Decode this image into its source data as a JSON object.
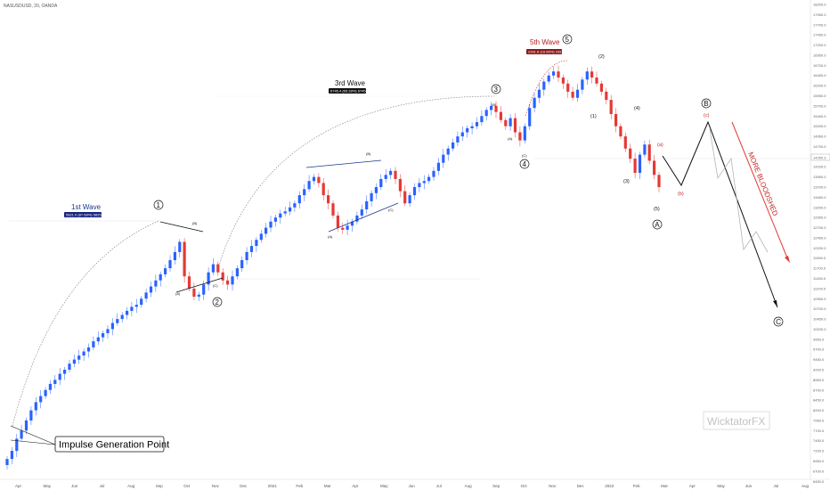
{
  "symbol": "NASUSDUSD, 20, OANDA",
  "watermark": "WicktatorFX",
  "colors": {
    "up": "#2962ff",
    "down": "#e53935",
    "circle": "#111111",
    "blue_box": "#1a237e",
    "red_box": "#b71c1c",
    "arrow": "#e53935"
  },
  "price_axis": {
    "range": [
      6500,
      18200
    ],
    "ticks": [
      "18200.0",
      "17950.0",
      "17700.0",
      "17450.0",
      "17200.0",
      "16950.0",
      "16700.0",
      "16450.0",
      "16200.0",
      "15950.0",
      "15700.0",
      "15450.0",
      "15200.0",
      "14950.0",
      "14700.0",
      "14450.0",
      "14200.0",
      "13950.0",
      "13700.0",
      "13450.0",
      "13200.0",
      "12950.0",
      "12700.0",
      "12450.0",
      "12200.0",
      "11950.0",
      "11700.0",
      "11450.0",
      "11200.0",
      "10950.0",
      "10700.0",
      "10450.0",
      "10200.0",
      "9950.0",
      "9700.0",
      "9450.0",
      "9200.0",
      "8950.0",
      "8700.0",
      "8450.0",
      "8200.0",
      "7950.0",
      "7700.0",
      "7450.0",
      "7200.0",
      "6950.0",
      "6700.0",
      "6450.0"
    ],
    "last_price": "14250.3"
  },
  "time_axis": {
    "labels": [
      "Apr",
      "May",
      "Jun",
      "Jul",
      "Aug",
      "Sep",
      "Oct",
      "Nov",
      "Dec",
      "2021",
      "Feb",
      "Mar",
      "Apr",
      "May",
      "Jun",
      "Jul",
      "Aug",
      "Sep",
      "Oct",
      "Nov",
      "Dec",
      "2022",
      "Feb",
      "Mar",
      "Apr",
      "May",
      "Jun",
      "Jul",
      "Aug"
    ]
  },
  "annotations": {
    "wave1_title": "1st Wave",
    "wave1_box": "5821.0 (87.68%) 58256",
    "wave3_title": "3rd Wave",
    "wave3_box": "6745.4 (65.28%) 67454",
    "wave5_title": "5th Wave",
    "wave5_box": "2391.6 (16.66%) 23916",
    "impulse": "Impulse Generation Point",
    "bloodshed": "MORE BLOODSHED"
  },
  "labels": {
    "c1": "1",
    "c2": "2",
    "c3": "3",
    "c4": "4",
    "c5": "5",
    "cA": "A",
    "cB": "B",
    "cC": "C",
    "p1": "(1)",
    "p2": "(2)",
    "p3": "(3)",
    "p4": "(4)",
    "p5": "(5)",
    "pa": "(a)",
    "pb": "(b)",
    "pc": "(c)",
    "sA": "(A)",
    "sB": "(B)",
    "sC": "(C)"
  },
  "chart_data": {
    "type": "candlestick",
    "ylim": [
      6500,
      18200
    ],
    "series": [
      {
        "name": "",
        "close": [
          7000,
          7200,
          7500,
          7700,
          7950,
          8200,
          8400,
          8550,
          8700,
          8850,
          8950,
          9100,
          9200,
          9350,
          9450,
          9550,
          9650,
          9750,
          9900,
          10000,
          10100,
          10200,
          10350,
          10450,
          10550,
          10650,
          10750,
          10800,
          10950,
          11100,
          11250,
          11400,
          11550,
          11700,
          11900,
          12100,
          12350,
          11500,
          11200,
          11000,
          11050,
          11300,
          11600,
          11800,
          11600,
          11400,
          11300,
          11500,
          11700,
          11900,
          12100,
          12250,
          12400,
          12550,
          12700,
          12850,
          12950,
          13050,
          13100,
          13200,
          13300,
          13500,
          13650,
          13850,
          13950,
          13800,
          13500,
          13300,
          13000,
          12700,
          12650,
          12750,
          12850,
          13000,
          13150,
          13350,
          13550,
          13700,
          13900,
          14000,
          14100,
          13900,
          13600,
          13300,
          13500,
          13700,
          13800,
          13850,
          13950,
          14100,
          14300,
          14500,
          14650,
          14800,
          14950,
          15050,
          15150,
          15200,
          15300,
          15450,
          15600,
          15700,
          15550,
          15350,
          15200,
          15400,
          15050,
          14850,
          15200,
          15650,
          15900,
          16100,
          16300,
          16450,
          16550,
          16400,
          16250,
          16050,
          15900,
          16100,
          16350,
          16550,
          16400,
          16250,
          16050,
          15850,
          15500,
          15200,
          14950,
          14650,
          14400,
          14050,
          14500,
          14750,
          14350,
          14000,
          13700
        ]
      }
    ]
  }
}
